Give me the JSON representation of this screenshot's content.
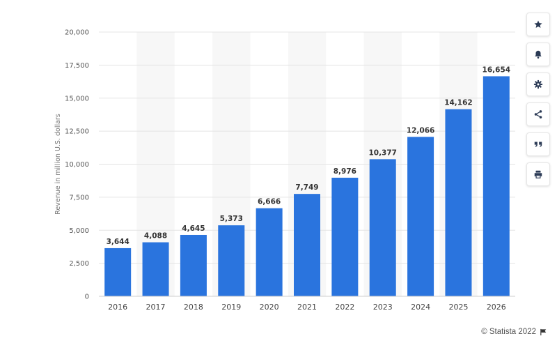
{
  "chart_data": {
    "type": "bar",
    "categories": [
      "2016",
      "2017",
      "2018",
      "2019",
      "2020",
      "2021",
      "2022",
      "2023",
      "2024",
      "2025",
      "2026"
    ],
    "values": [
      3644,
      4088,
      4645,
      5373,
      6666,
      7749,
      8976,
      10377,
      12066,
      14162,
      16654
    ],
    "data_labels": [
      "3,644",
      "4,088",
      "4,645",
      "5,373",
      "6,666",
      "7,749",
      "8,976",
      "10,377",
      "12,066",
      "14,162",
      "16,654"
    ],
    "ylabel": "Revenue in million U.S. dollars",
    "xlabel": "",
    "ylim": [
      0,
      20000
    ],
    "y_ticks": [
      0,
      2500,
      5000,
      7500,
      10000,
      12500,
      15000,
      17500,
      20000
    ],
    "y_tick_labels": [
      "0",
      "2,500",
      "5,000",
      "7,500",
      "10,000",
      "12,500",
      "15,000",
      "17,500",
      "20,000"
    ],
    "grid": true,
    "bar_color": "#2a74de",
    "band_color": "#f7f7f7"
  },
  "toolbar": {
    "buttons": [
      {
        "name": "favorite-button",
        "icon": "star-icon"
      },
      {
        "name": "notification-button",
        "icon": "bell-icon"
      },
      {
        "name": "settings-button",
        "icon": "gear-icon"
      },
      {
        "name": "share-button",
        "icon": "share-icon"
      },
      {
        "name": "cite-button",
        "icon": "quote-icon"
      },
      {
        "name": "print-button",
        "icon": "print-icon"
      }
    ]
  },
  "credits": {
    "text": "© Statista 2022"
  }
}
